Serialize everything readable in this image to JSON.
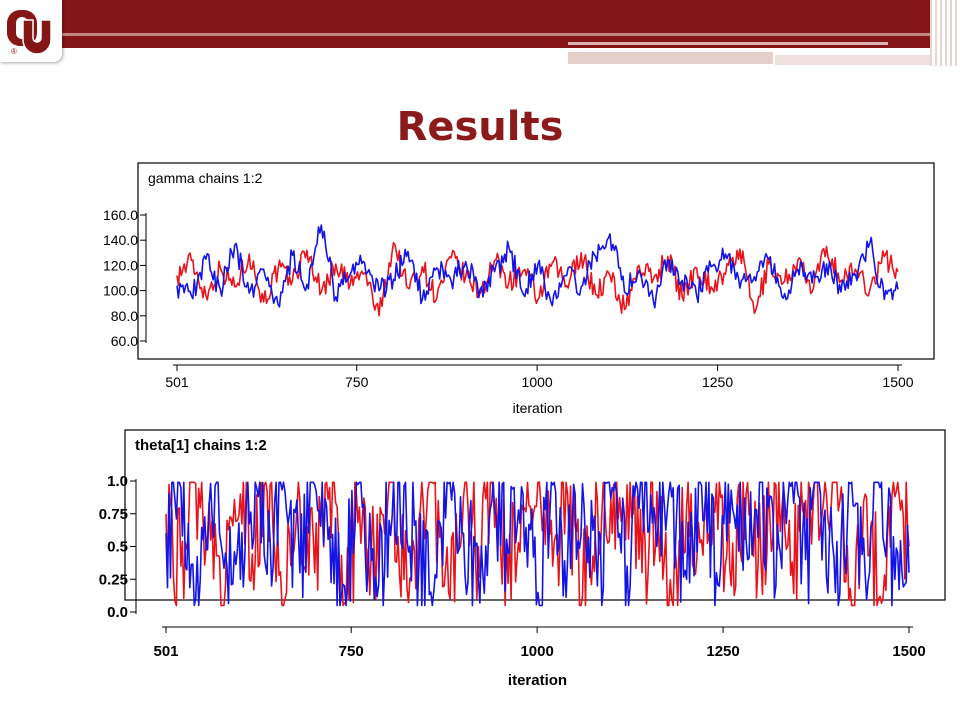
{
  "slide": {
    "title": "Results",
    "header_color": "#841617",
    "logo_mark": "OU interlocking monogram with registered mark"
  },
  "chart_data": [
    {
      "type": "line",
      "title": "gamma chains 1:2",
      "xlabel": "iteration",
      "ylabel": "",
      "xlim": [
        501,
        1500
      ],
      "ylim": [
        60,
        160
      ],
      "x_ticks": [
        501,
        750,
        1000,
        1250,
        1500
      ],
      "x_tick_labels": [
        "501",
        "750",
        "1000",
        "1250",
        "1500"
      ],
      "y_ticks": [
        60,
        80,
        100,
        120,
        140,
        160
      ],
      "y_tick_labels": [
        "60.0",
        "80.0",
        "100.0",
        "120.0",
        "140.0",
        "160.0"
      ],
      "grid": false,
      "bold_labels": false,
      "series": [
        {
          "color": "#e8141b",
          "x": [
            501,
            521,
            541,
            561,
            581,
            601,
            621,
            641,
            661,
            681,
            701,
            721,
            741,
            761,
            781,
            801,
            821,
            841,
            861,
            881,
            901,
            921,
            941,
            961,
            981,
            1001,
            1021,
            1041,
            1061,
            1081,
            1101,
            1121,
            1141,
            1161,
            1181,
            1201,
            1221,
            1241,
            1261,
            1281,
            1301,
            1321,
            1341,
            1361,
            1381,
            1401,
            1421,
            1441,
            1461,
            1481,
            1500
          ],
          "values": [
            112,
            124,
            96,
            118,
            103,
            129,
            91,
            117,
            108,
            132,
            99,
            121,
            105,
            114,
            80,
            138,
            102,
            119,
            94,
            126,
            111,
            98,
            124,
            107,
            116,
            93,
            122,
            104,
            130,
            97,
            112,
            85,
            120,
            109,
            127,
            95,
            118,
            103,
            113,
            133,
            82,
            121,
            106,
            124,
            99,
            135,
            108,
            117,
            101,
            127,
            115
          ]
        },
        {
          "color": "#1414e6",
          "x": [
            501,
            521,
            541,
            561,
            581,
            601,
            621,
            641,
            661,
            681,
            701,
            721,
            741,
            761,
            781,
            801,
            821,
            841,
            861,
            881,
            901,
            921,
            941,
            961,
            981,
            1001,
            1021,
            1041,
            1061,
            1081,
            1101,
            1121,
            1141,
            1161,
            1181,
            1201,
            1221,
            1241,
            1261,
            1281,
            1301,
            1321,
            1341,
            1361,
            1381,
            1401,
            1421,
            1441,
            1461,
            1481,
            1500
          ],
          "values": [
            104,
            96,
            125,
            101,
            136,
            98,
            117,
            89,
            128,
            105,
            152,
            95,
            113,
            122,
            100,
            109,
            131,
            93,
            118,
            107,
            123,
            101,
            115,
            134,
            97,
            121,
            88,
            112,
            103,
            127,
            145,
            99,
            116,
            92,
            124,
            108,
            96,
            119,
            129,
            102,
            111,
            125,
            94,
            117,
            106,
            121,
            99,
            113,
            138,
            93,
            101
          ]
        }
      ]
    },
    {
      "type": "line",
      "title": "theta[1] chains 1:2",
      "xlabel": "iteration",
      "ylabel": "",
      "xlim": [
        501,
        1500
      ],
      "ylim": [
        0,
        1.0
      ],
      "x_ticks": [
        501,
        750,
        1000,
        1250,
        1500
      ],
      "x_tick_labels": [
        "501",
        "750",
        "1000",
        "1250",
        "1500"
      ],
      "y_ticks": [
        0,
        0.25,
        0.5,
        0.75,
        1.0
      ],
      "y_tick_labels": [
        "0.0",
        "0.25",
        "0.5",
        "0.75",
        "1.0"
      ],
      "grid": false,
      "bold_labels": true,
      "series": [
        {
          "color": "#e8141b",
          "x": [
            501,
            521,
            541,
            561,
            581,
            601,
            621,
            641,
            661,
            681,
            701,
            721,
            741,
            761,
            781,
            801,
            821,
            841,
            861,
            881,
            901,
            921,
            941,
            961,
            981,
            1001,
            1021,
            1041,
            1061,
            1081,
            1101,
            1121,
            1141,
            1161,
            1181,
            1201,
            1221,
            1241,
            1261,
            1281,
            1301,
            1321,
            1341,
            1361,
            1381,
            1401,
            1421,
            1441,
            1461,
            1481,
            1500
          ],
          "values": [
            0.75,
            0.35,
            0.98,
            0.55,
            0.2,
            0.9,
            0.4,
            0.97,
            0.1,
            0.85,
            0.3,
            0.95,
            0.07,
            0.8,
            0.45,
            0.99,
            0.25,
            0.7,
            0.98,
            0.15,
            0.88,
            0.5,
            0.96,
            0.22,
            0.78,
            0.99,
            0.35,
            0.9,
            0.12,
            0.85,
            0.6,
            0.97,
            0.3,
            0.92,
            0.1,
            0.8,
            0.55,
            0.98,
            0.2,
            0.9,
            0.4,
            0.97,
            0.28,
            0.85,
            0.65,
            0.99,
            0.18,
            0.9,
            0.12,
            0.88,
            0.5
          ]
        },
        {
          "color": "#1414e6",
          "x": [
            501,
            521,
            541,
            561,
            581,
            601,
            621,
            641,
            661,
            681,
            701,
            721,
            741,
            761,
            781,
            801,
            821,
            841,
            861,
            881,
            901,
            921,
            941,
            961,
            981,
            1001,
            1021,
            1041,
            1061,
            1081,
            1101,
            1121,
            1141,
            1161,
            1181,
            1201,
            1221,
            1241,
            1261,
            1281,
            1301,
            1321,
            1341,
            1361,
            1381,
            1401,
            1421,
            1441,
            1461,
            1481,
            1500
          ],
          "values": [
            0.6,
            0.95,
            0.1,
            0.98,
            0.45,
            0.25,
            0.99,
            0.55,
            0.92,
            0.3,
            0.97,
            0.65,
            0.2,
            0.99,
            0.1,
            0.7,
            0.96,
            0.35,
            0.15,
            0.98,
            0.6,
            0.25,
            0.99,
            0.45,
            0.9,
            0.15,
            0.97,
            0.4,
            0.98,
            0.2,
            0.95,
            0.35,
            0.99,
            0.5,
            0.88,
            0.25,
            0.97,
            0.3,
            0.93,
            0.55,
            0.99,
            0.2,
            0.96,
            0.4,
            0.9,
            0.15,
            0.98,
            0.3,
            0.95,
            0.25,
            0.3
          ]
        }
      ]
    }
  ]
}
